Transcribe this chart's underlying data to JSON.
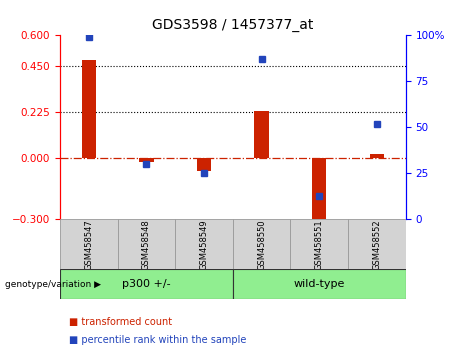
{
  "title": "GDS3598 / 1457377_at",
  "samples": [
    "GSM458547",
    "GSM458548",
    "GSM458549",
    "GSM458550",
    "GSM458551",
    "GSM458552"
  ],
  "red_values": [
    0.48,
    -0.02,
    -0.065,
    0.23,
    -0.325,
    0.02
  ],
  "blue_values_pct": [
    99,
    30,
    25,
    87,
    13,
    52
  ],
  "ylim_left": [
    -0.3,
    0.6
  ],
  "ylim_right": [
    0,
    100
  ],
  "yticks_left": [
    -0.3,
    0.0,
    0.225,
    0.45,
    0.6
  ],
  "yticks_right": [
    0,
    25,
    50,
    75,
    100
  ],
  "hlines": [
    0.225,
    0.45
  ],
  "group_label": "genotype/variation",
  "group_ranges": [
    [
      0,
      2
    ],
    [
      3,
      5
    ]
  ],
  "group_labels": [
    "p300 +/-",
    "wild-type"
  ],
  "group_color": "#90EE90",
  "bar_color": "#CC2200",
  "dot_color": "#2244BB",
  "zero_line_color": "#CC2200",
  "hline_color": "#000000",
  "bg_color": "#FFFFFF",
  "label_transformed": "transformed count",
  "label_percentile": "percentile rank within the sample",
  "bar_width": 0.25,
  "sample_box_color": "#D3D3D3",
  "sample_box_edge": "#999999"
}
